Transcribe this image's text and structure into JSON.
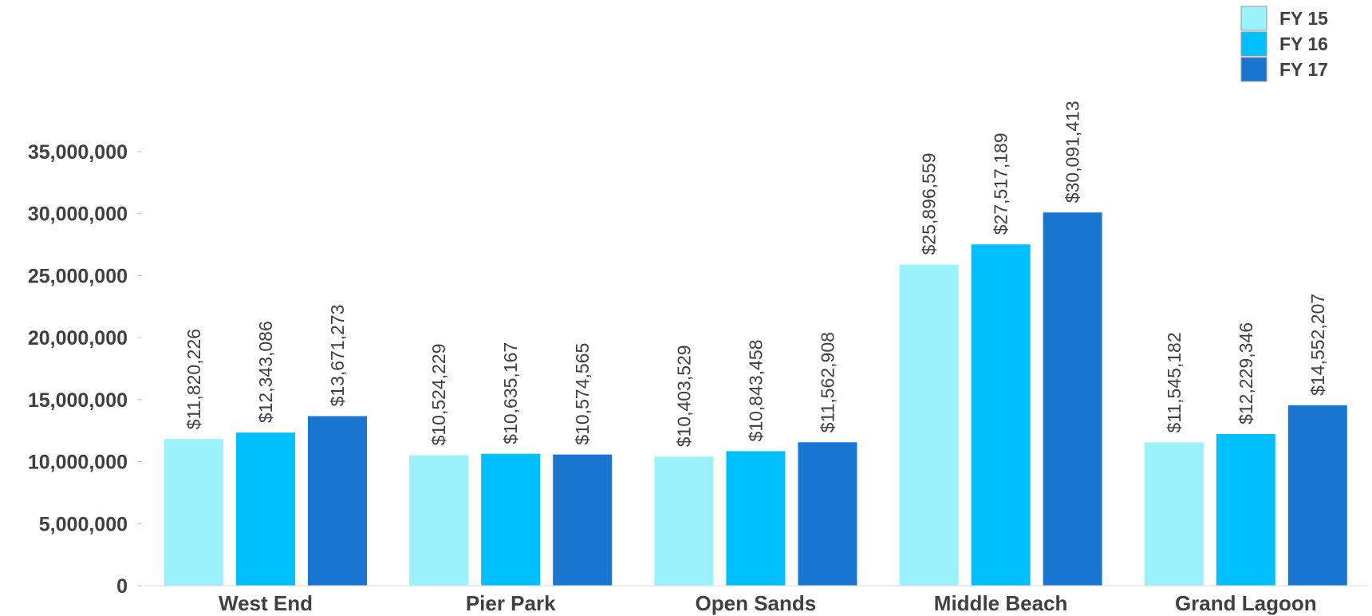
{
  "chart_data": {
    "type": "bar",
    "title": "",
    "xlabel": "",
    "ylabel": "",
    "ylim": [
      0,
      35000000
    ],
    "yticks": [
      0,
      5000000,
      10000000,
      15000000,
      20000000,
      25000000,
      30000000,
      35000000
    ],
    "ytick_labels": [
      "0",
      "5,000,000",
      "10,000,000",
      "15,000,000",
      "20,000,000",
      "25,000,000",
      "30,000,000",
      "35,000,000"
    ],
    "grid": false,
    "legend_position": "top-right",
    "categories": [
      "West End",
      "Pier Park",
      "Open Sands",
      "Middle Beach",
      "Grand Lagoon"
    ],
    "series": [
      {
        "name": "FY 15",
        "color": "#9BF2FC",
        "values": [
          11820226,
          10524229,
          10403529,
          25896559,
          11545182
        ],
        "labels": [
          "$11,820,226",
          "$10,524,229",
          "$10,403,529",
          "$25,896,559",
          "$11,545,182"
        ]
      },
      {
        "name": "FY 16",
        "color": "#00BFFF",
        "values": [
          12343086,
          10635167,
          10843458,
          27517189,
          12229346
        ],
        "labels": [
          "$12,343,086",
          "$10,635,167",
          "$10,843,458",
          "$27,517,189",
          "$12,229,346"
        ]
      },
      {
        "name": "FY 17",
        "color": "#1A75D1",
        "values": [
          13671273,
          10574565,
          11562908,
          30091413,
          14552207
        ],
        "labels": [
          "$13,671,273",
          "$10,574,565",
          "$11,562,908",
          "$30,091,413",
          "$14,552,207"
        ]
      }
    ]
  }
}
